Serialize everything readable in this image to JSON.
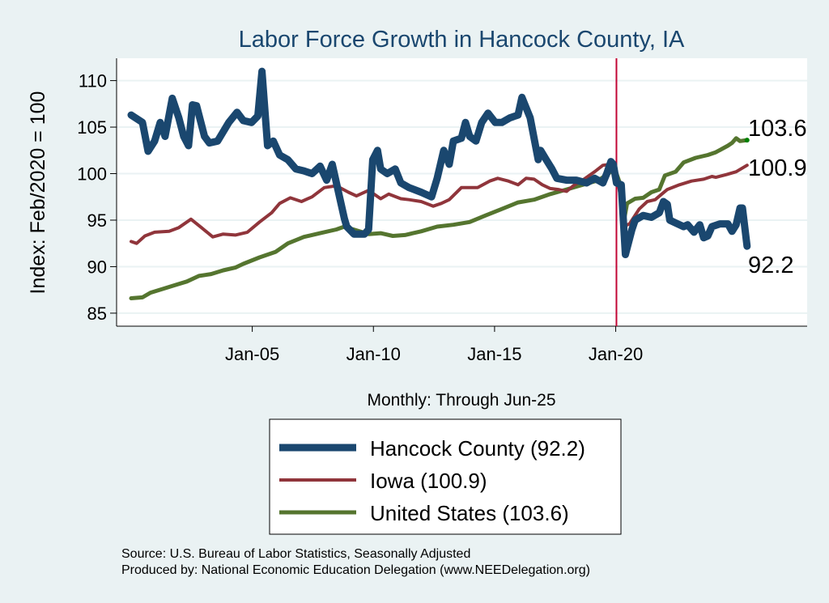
{
  "chart_data": {
    "type": "line",
    "title": "Labor Force Growth in Hancock  County, IA",
    "xlabel": "Monthly: Through Jun-25",
    "ylabel": "Index: Feb/2020 = 100",
    "xlim": [
      1999.4,
      2027.9
    ],
    "ylim": [
      83.6,
      112.4
    ],
    "yticks": [
      85,
      90,
      95,
      100,
      105,
      110
    ],
    "xticks": [
      {
        "value": 2005,
        "label": "Jan-05"
      },
      {
        "value": 2010,
        "label": "Jan-10"
      },
      {
        "value": 2015,
        "label": "Jan-15"
      },
      {
        "value": 2020,
        "label": "Jan-20"
      }
    ],
    "grid": true,
    "reference_line": {
      "x": 2020.03,
      "color": "#c10534"
    },
    "legend_position": "bottom",
    "series": [
      {
        "name": "Hancock  County",
        "legend": "Hancock  County (92.2)",
        "end_label": "92.2",
        "color": "#1a476f",
        "x": [
          2000.0,
          2000.47,
          2000.7,
          2000.97,
          2001.2,
          2001.4,
          2001.7,
          2001.97,
          2002.17,
          2002.37,
          2002.53,
          2002.7,
          2003.03,
          2003.23,
          2003.57,
          2004.03,
          2004.37,
          2004.63,
          2004.97,
          2005.23,
          2005.4,
          2005.63,
          2005.87,
          2006.13,
          2006.47,
          2006.8,
          2007.13,
          2007.47,
          2007.8,
          2008.07,
          2008.3,
          2008.8,
          2008.9,
          2009.2,
          2009.63,
          2009.8,
          2009.97,
          2010.17,
          2010.3,
          2010.57,
          2010.9,
          2011.13,
          2011.47,
          2011.97,
          2012.4,
          2012.63,
          2012.9,
          2013.13,
          2013.3,
          2013.63,
          2013.8,
          2013.97,
          2014.23,
          2014.47,
          2014.73,
          2015.03,
          2015.3,
          2015.63,
          2015.97,
          2016.13,
          2016.47,
          2016.8,
          2016.9,
          2017.13,
          2017.37,
          2017.57,
          2017.97,
          2018.37,
          2018.8,
          2019.13,
          2019.47,
          2019.63,
          2019.8,
          2019.9,
          2020.03,
          2020.23,
          2020.4,
          2020.67,
          2020.8,
          2021.13,
          2021.47,
          2021.8,
          2021.97,
          2022.13,
          2022.23,
          2022.47,
          2022.8,
          2022.97,
          2023.23,
          2023.47,
          2023.63,
          2023.8,
          2023.97,
          2024.3,
          2024.63,
          2024.8,
          2024.97,
          2025.13,
          2025.23,
          2025.42
        ],
        "y": [
          106.3,
          105.5,
          102.4,
          103.5,
          105.5,
          104,
          108.1,
          106,
          104,
          103,
          107.4,
          107.3,
          104,
          103.3,
          103.5,
          105.5,
          106.6,
          105.7,
          105.5,
          106.2,
          111,
          103,
          103.5,
          102,
          101.5,
          100.5,
          100.3,
          100,
          100.8,
          99.3,
          101,
          95.2,
          94.3,
          93.5,
          93.5,
          94,
          101.5,
          102.5,
          100.5,
          100,
          100.5,
          99,
          98.5,
          98,
          97.5,
          99.5,
          102.5,
          101,
          103.5,
          103.8,
          105.5,
          104,
          103.5,
          105.5,
          106.5,
          105.5,
          105.5,
          106,
          106.3,
          108.2,
          106,
          101.5,
          102.5,
          101.5,
          100.5,
          99.5,
          99.3,
          99.3,
          99,
          99.5,
          99,
          100,
          101.3,
          101,
          99,
          98.8,
          91.3,
          94,
          95,
          95.5,
          95.3,
          95.8,
          97,
          96.7,
          95,
          94.7,
          94.3,
          94.5,
          93.7,
          94.5,
          93.1,
          93.3,
          94.3,
          94.6,
          94.6,
          93.8,
          94.5,
          96.3,
          96.3,
          92.2
        ]
      },
      {
        "name": "Iowa",
        "legend": "Iowa (100.9)",
        "end_label": "100.9",
        "color": "#90353b",
        "x": [
          2000.0,
          2000.23,
          2000.57,
          2000.97,
          2001.57,
          2001.97,
          2002.47,
          2002.9,
          2003.37,
          2003.8,
          2004.3,
          2004.8,
          2005.3,
          2005.8,
          2006.13,
          2006.57,
          2007.03,
          2007.47,
          2007.97,
          2008.47,
          2008.97,
          2009.3,
          2009.8,
          2010.3,
          2010.63,
          2011.13,
          2011.47,
          2011.97,
          2012.47,
          2012.8,
          2013.13,
          2013.63,
          2013.97,
          2014.3,
          2014.8,
          2015.13,
          2015.57,
          2015.97,
          2016.3,
          2016.63,
          2016.97,
          2017.3,
          2017.63,
          2017.97,
          2018.3,
          2018.63,
          2019.13,
          2019.47,
          2019.8,
          2020.03,
          2020.23,
          2020.3,
          2020.57,
          2020.97,
          2021.3,
          2021.63,
          2021.9,
          2022.13,
          2022.63,
          2023.13,
          2023.63,
          2023.97,
          2024.13,
          2024.57,
          2024.97,
          2025.42
        ],
        "y": [
          92.7,
          92.5,
          93.3,
          93.7,
          93.8,
          94.2,
          95.1,
          94.2,
          93.2,
          93.5,
          93.4,
          93.7,
          94.8,
          95.8,
          96.8,
          97.4,
          97,
          97.5,
          98.5,
          98.7,
          98,
          97.6,
          98.2,
          97.3,
          97.8,
          97.3,
          97.2,
          97,
          96.5,
          96.8,
          97.2,
          98.5,
          98.5,
          98.5,
          99.2,
          99.5,
          99.2,
          98.8,
          99.5,
          99.4,
          98.8,
          98.4,
          98.3,
          98.1,
          98.8,
          99.3,
          100.2,
          100.9,
          101,
          100,
          97,
          94.3,
          94.6,
          96.2,
          97,
          97.2,
          97.8,
          98.3,
          98.8,
          99.2,
          99.4,
          99.7,
          99.6,
          99.9,
          100.2,
          100.9
        ]
      },
      {
        "name": "United States",
        "legend": "United States (103.6)",
        "end_label": "103.6",
        "color": "#55752f",
        "x": [
          2000.0,
          2000.47,
          2000.8,
          2001.3,
          2001.8,
          2002.3,
          2002.8,
          2003.3,
          2003.8,
          2004.3,
          2004.63,
          2005.3,
          2005.97,
          2006.47,
          2007.13,
          2007.8,
          2008.47,
          2008.8,
          2009.3,
          2009.8,
          2010.3,
          2010.8,
          2011.3,
          2011.97,
          2012.63,
          2013.3,
          2013.97,
          2014.63,
          2015.3,
          2015.97,
          2016.63,
          2017.3,
          2017.97,
          2018.63,
          2019.3,
          2019.8,
          2020.03,
          2020.17,
          2020.33,
          2020.47,
          2020.8,
          2021.13,
          2021.47,
          2021.8,
          2022.03,
          2022.47,
          2022.8,
          2023.3,
          2023.8,
          2024.13,
          2024.63,
          2024.8,
          2024.97,
          2025.13,
          2025.42
        ],
        "y": [
          86.6,
          86.7,
          87.2,
          87.6,
          88,
          88.4,
          89,
          89.2,
          89.6,
          89.9,
          90.3,
          91,
          91.6,
          92.5,
          93.2,
          93.6,
          94,
          94.3,
          93.9,
          93.5,
          93.6,
          93.3,
          93.4,
          93.8,
          94.3,
          94.5,
          94.8,
          95.5,
          96.2,
          96.9,
          97.2,
          97.8,
          98.3,
          98.8,
          99.3,
          100.2,
          100,
          99,
          94.8,
          96.8,
          97.3,
          97.4,
          98,
          98.3,
          99.8,
          100.2,
          101.2,
          101.7,
          102,
          102.3,
          103,
          103.3,
          103.8,
          103.5,
          103.6
        ]
      }
    ],
    "notes": [
      "Source: U.S. Bureau of Labor Statistics, Seasonally Adjusted",
      "Produced by: National Economic Education Delegation (www.NEEDelegation.org)"
    ]
  }
}
